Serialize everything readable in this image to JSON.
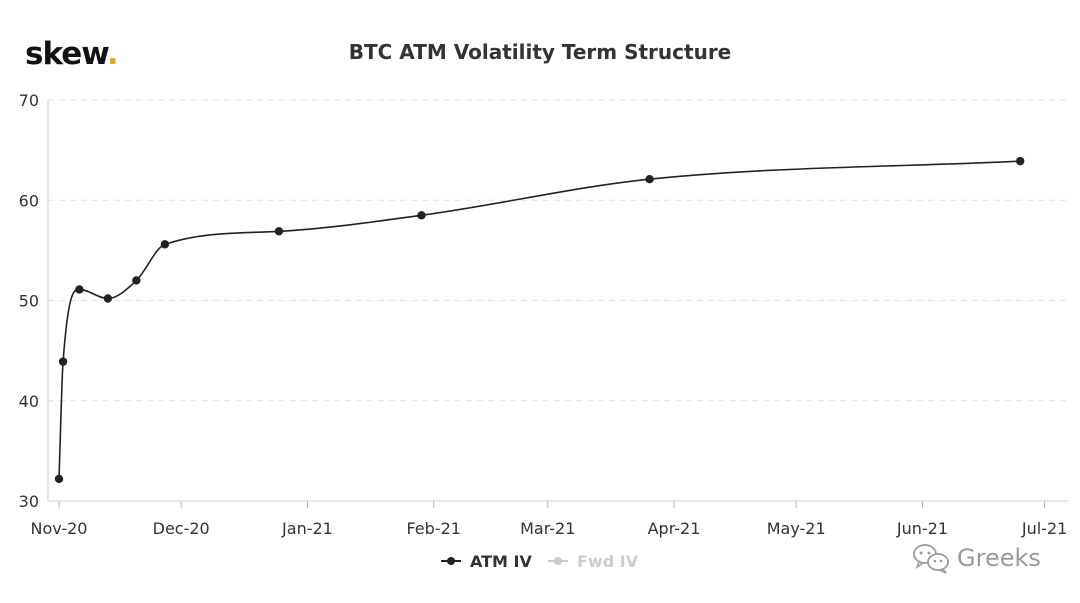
{
  "brand": {
    "name": "skew",
    "dot": ".",
    "dot_color": "#e3a82b"
  },
  "watermark": {
    "text": "Greeks"
  },
  "chart_data": {
    "type": "line",
    "title": "BTC ATM Volatility Term Structure",
    "xlabel": "",
    "ylabel": "",
    "ylim": [
      30,
      70
    ],
    "yticks": [
      30,
      40,
      50,
      60,
      70
    ],
    "xlim": [
      "2020-11-01",
      "2021-07-06"
    ],
    "xticks": [
      {
        "label": "Nov-20",
        "date": "2020-11-01"
      },
      {
        "label": "Dec-20",
        "date": "2020-12-01"
      },
      {
        "label": "Jan-21",
        "date": "2021-01-01"
      },
      {
        "label": "Feb-21",
        "date": "2021-02-01"
      },
      {
        "label": "Mar-21",
        "date": "2021-03-01"
      },
      {
        "label": "Apr-21",
        "date": "2021-04-01"
      },
      {
        "label": "May-21",
        "date": "2021-05-01"
      },
      {
        "label": "Jun-21",
        "date": "2021-06-01"
      },
      {
        "label": "Jul-21",
        "date": "2021-07-01"
      }
    ],
    "grid": "horizontal-dashed",
    "legend_position": "bottom-center",
    "series": [
      {
        "name": "ATM IV",
        "color": "#222222",
        "visible": true,
        "points": [
          {
            "x": "2020-11-01",
            "y": 32.2
          },
          {
            "x": "2020-11-02",
            "y": 43.9
          },
          {
            "x": "2020-11-06",
            "y": 51.1
          },
          {
            "x": "2020-11-13",
            "y": 50.2
          },
          {
            "x": "2020-11-20",
            "y": 52.0
          },
          {
            "x": "2020-11-27",
            "y": 55.6
          },
          {
            "x": "2020-12-25",
            "y": 56.9
          },
          {
            "x": "2021-01-29",
            "y": 58.5
          },
          {
            "x": "2021-03-26",
            "y": 62.1
          },
          {
            "x": "2021-06-25",
            "y": 63.9
          }
        ]
      },
      {
        "name": "Fwd IV",
        "color": "#cccccc",
        "visible": false,
        "points": []
      }
    ]
  }
}
